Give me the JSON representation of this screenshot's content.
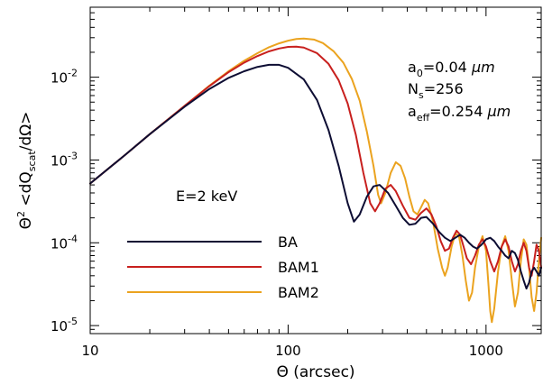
{
  "chart_data": {
    "type": "line",
    "xlabel": "Θ (arcsec)",
    "ylabel": "Θ² <dQscat/dΩ>",
    "ylabel_parts": {
      "theta": "Θ",
      "sup": "2",
      "q": " <dQ",
      "sub": "scat",
      "tail": "/dΩ>"
    },
    "xscale": "log",
    "yscale": "log",
    "xlim": [
      10,
      1900
    ],
    "ylim": [
      8e-06,
      0.07
    ],
    "x_ticks": [
      10,
      100,
      1000
    ],
    "x_tick_labels": [
      "10",
      "100",
      "1000"
    ],
    "y_ticks": [
      1e-05,
      0.0001,
      0.001,
      0.01
    ],
    "y_tick_labels": [
      {
        "base": "10",
        "exp": "-5"
      },
      {
        "base": "10",
        "exp": "-4"
      },
      {
        "base": "10",
        "exp": "-3"
      },
      {
        "base": "10",
        "exp": "-2"
      }
    ],
    "grid": false,
    "legend_placement": "lower-left",
    "annotations": [
      {
        "pre": "a",
        "sub": "0",
        "post": "=0.04 ",
        "unit": "μm"
      },
      {
        "pre": "N",
        "sub": "s",
        "post": "=256",
        "unit": ""
      },
      {
        "pre": "a",
        "sub": "eff",
        "post": "=0.254 ",
        "unit": "μm"
      }
    ],
    "energy_label": "E=2 keV",
    "series": [
      {
        "name": "BA",
        "color": "#0d0d33",
        "points": [
          [
            10,
            0.00052
          ],
          [
            15,
            0.00115
          ],
          [
            20,
            0.00205
          ],
          [
            30,
            0.0044
          ],
          [
            40,
            0.0072
          ],
          [
            50,
            0.0098
          ],
          [
            60,
            0.0118
          ],
          [
            70,
            0.0133
          ],
          [
            80,
            0.0141
          ],
          [
            90,
            0.0141
          ],
          [
            100,
            0.013
          ],
          [
            120,
            0.0094
          ],
          [
            140,
            0.0053
          ],
          [
            160,
            0.0023
          ],
          [
            180,
            0.00085
          ],
          [
            200,
            0.0003
          ],
          [
            215,
            0.00018
          ],
          [
            230,
            0.00022
          ],
          [
            250,
            0.00036
          ],
          [
            270,
            0.00048
          ],
          [
            290,
            0.0005
          ],
          [
            320,
            0.0004
          ],
          [
            350,
            0.00028
          ],
          [
            380,
            0.0002
          ],
          [
            410,
            0.000165
          ],
          [
            440,
            0.00017
          ],
          [
            470,
            0.0002
          ],
          [
            500,
            0.000205
          ],
          [
            540,
            0.00017
          ],
          [
            580,
            0.000135
          ],
          [
            620,
            0.000115
          ],
          [
            660,
            0.000105
          ],
          [
            700,
            0.000115
          ],
          [
            740,
            0.000125
          ],
          [
            780,
            0.000115
          ],
          [
            820,
            0.0001
          ],
          [
            860,
            9e-05
          ],
          [
            900,
            8.5e-05
          ],
          [
            950,
            9.5e-05
          ],
          [
            1000,
            0.00011
          ],
          [
            1050,
            0.000115
          ],
          [
            1100,
            0.000105
          ],
          [
            1150,
            9e-05
          ],
          [
            1200,
            8e-05
          ],
          [
            1250,
            7e-05
          ],
          [
            1300,
            6.5e-05
          ],
          [
            1350,
            8e-05
          ],
          [
            1400,
            7.5e-05
          ],
          [
            1450,
            6.2e-05
          ],
          [
            1500,
            4.5e-05
          ],
          [
            1550,
            3.5e-05
          ],
          [
            1600,
            2.8e-05
          ],
          [
            1650,
            3.3e-05
          ],
          [
            1700,
            4.5e-05
          ],
          [
            1750,
            5e-05
          ],
          [
            1800,
            4.5e-05
          ],
          [
            1850,
            4e-05
          ],
          [
            1900,
            5e-05
          ]
        ]
      },
      {
        "name": "BAM1",
        "color": "#c8201e",
        "points": [
          [
            10,
            0.00052
          ],
          [
            15,
            0.00115
          ],
          [
            20,
            0.00205
          ],
          [
            30,
            0.0045
          ],
          [
            40,
            0.0078
          ],
          [
            50,
            0.0115
          ],
          [
            60,
            0.015
          ],
          [
            70,
            0.018
          ],
          [
            80,
            0.0205
          ],
          [
            90,
            0.0222
          ],
          [
            100,
            0.0232
          ],
          [
            110,
            0.0234
          ],
          [
            120,
            0.0228
          ],
          [
            140,
            0.0195
          ],
          [
            160,
            0.0145
          ],
          [
            180,
            0.0092
          ],
          [
            200,
            0.0048
          ],
          [
            220,
            0.002
          ],
          [
            240,
            0.0007
          ],
          [
            260,
            0.0003
          ],
          [
            275,
            0.00024
          ],
          [
            290,
            0.0003
          ],
          [
            310,
            0.00045
          ],
          [
            330,
            0.0005
          ],
          [
            350,
            0.00042
          ],
          [
            380,
            0.00028
          ],
          [
            410,
            0.0002
          ],
          [
            440,
            0.00019
          ],
          [
            470,
            0.00023
          ],
          [
            500,
            0.00026
          ],
          [
            530,
            0.00022
          ],
          [
            560,
            0.00016
          ],
          [
            590,
            0.000105
          ],
          [
            620,
            8e-05
          ],
          [
            650,
            8.5e-05
          ],
          [
            680,
            0.000115
          ],
          [
            710,
            0.00014
          ],
          [
            740,
            0.000125
          ],
          [
            770,
            9e-05
          ],
          [
            800,
            6.5e-05
          ],
          [
            840,
            5.5e-05
          ],
          [
            880,
            7e-05
          ],
          [
            920,
            9.5e-05
          ],
          [
            960,
            0.00011
          ],
          [
            1000,
            9e-05
          ],
          [
            1050,
            6e-05
          ],
          [
            1100,
            4.5e-05
          ],
          [
            1150,
            6e-05
          ],
          [
            1200,
            9e-05
          ],
          [
            1250,
            0.00011
          ],
          [
            1300,
            9e-05
          ],
          [
            1350,
            6e-05
          ],
          [
            1400,
            4.5e-05
          ],
          [
            1450,
            5.5e-05
          ],
          [
            1500,
            8e-05
          ],
          [
            1550,
            0.0001
          ],
          [
            1600,
            8e-05
          ],
          [
            1650,
            5e-05
          ],
          [
            1700,
            4e-05
          ],
          [
            1750,
            6e-05
          ],
          [
            1800,
            9.5e-05
          ],
          [
            1850,
            8e-05
          ],
          [
            1900,
            5e-05
          ]
        ]
      },
      {
        "name": "BAM2",
        "color": "#eba31f",
        "points": [
          [
            10,
            0.00052
          ],
          [
            15,
            0.00115
          ],
          [
            20,
            0.00205
          ],
          [
            30,
            0.0045
          ],
          [
            40,
            0.0079
          ],
          [
            50,
            0.0118
          ],
          [
            60,
            0.0158
          ],
          [
            70,
            0.0195
          ],
          [
            80,
            0.023
          ],
          [
            90,
            0.0256
          ],
          [
            100,
            0.0276
          ],
          [
            110,
            0.0289
          ],
          [
            120,
            0.0293
          ],
          [
            135,
            0.0285
          ],
          [
            150,
            0.0258
          ],
          [
            170,
            0.0205
          ],
          [
            190,
            0.015
          ],
          [
            210,
            0.0095
          ],
          [
            230,
            0.0052
          ],
          [
            250,
            0.0022
          ],
          [
            270,
            0.00085
          ],
          [
            285,
            0.00038
          ],
          [
            295,
            0.0003
          ],
          [
            310,
            0.0004
          ],
          [
            330,
            0.0007
          ],
          [
            350,
            0.00094
          ],
          [
            370,
            0.00085
          ],
          [
            390,
            0.0006
          ],
          [
            410,
            0.00036
          ],
          [
            430,
            0.00024
          ],
          [
            450,
            0.00022
          ],
          [
            470,
            0.00027
          ],
          [
            490,
            0.00033
          ],
          [
            510,
            0.0003
          ],
          [
            540,
            0.00018
          ],
          [
            570,
            8.5e-05
          ],
          [
            600,
            5e-05
          ],
          [
            620,
            4e-05
          ],
          [
            640,
            5e-05
          ],
          [
            670,
            9e-05
          ],
          [
            700,
            0.00013
          ],
          [
            730,
            0.00012
          ],
          [
            760,
            7e-05
          ],
          [
            790,
            3.5e-05
          ],
          [
            820,
            2e-05
          ],
          [
            850,
            2.5e-05
          ],
          [
            880,
            5e-05
          ],
          [
            920,
            9e-05
          ],
          [
            960,
            0.00012
          ],
          [
            1000,
            8e-05
          ],
          [
            1030,
            3e-05
          ],
          [
            1050,
            1.5e-05
          ],
          [
            1070,
            1.1e-05
          ],
          [
            1100,
            1.6e-05
          ],
          [
            1150,
            4.5e-05
          ],
          [
            1200,
            9e-05
          ],
          [
            1250,
            0.00012
          ],
          [
            1300,
            8e-05
          ],
          [
            1350,
            3.5e-05
          ],
          [
            1400,
            1.7e-05
          ],
          [
            1450,
            2.5e-05
          ],
          [
            1500,
            6e-05
          ],
          [
            1550,
            0.00011
          ],
          [
            1600,
            9.5e-05
          ],
          [
            1650,
            5e-05
          ],
          [
            1700,
            2.2e-05
          ],
          [
            1750,
            1.5e-05
          ],
          [
            1800,
            2.5e-05
          ],
          [
            1850,
            6e-05
          ],
          [
            1900,
            0.000115
          ]
        ]
      }
    ]
  }
}
